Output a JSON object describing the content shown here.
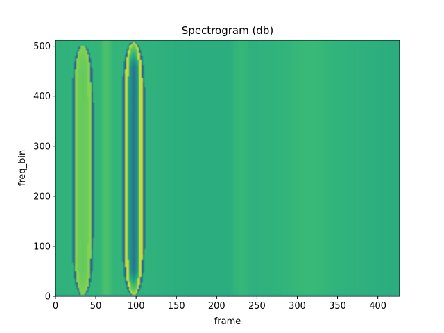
{
  "chart_data": {
    "type": "heatmap",
    "title": "Spectrogram (db)",
    "xlabel": "frame",
    "ylabel": "freq_bin",
    "xlim": [
      0,
      427
    ],
    "ylim": [
      0,
      512
    ],
    "xticks": [
      0,
      50,
      100,
      150,
      200,
      250,
      300,
      350,
      400
    ],
    "yticks": [
      0,
      100,
      200,
      300,
      400,
      500
    ],
    "xtick_labels": [
      "0",
      "50",
      "100",
      "150",
      "200",
      "250",
      "300",
      "350",
      "400"
    ],
    "ytick_labels": [
      "0",
      "100",
      "200",
      "300",
      "400",
      "500"
    ],
    "colormap": "viridis",
    "grid": false,
    "background_level": 0.72,
    "bands": [
      {
        "x_center": 34,
        "x_halfwidth": 12,
        "y_top": 502,
        "y_bottom": 2,
        "outer_level": 0.9,
        "inner_level": 0.86,
        "edge_level": 0.35
      },
      {
        "x_center": 97,
        "x_halfwidth": 13,
        "y_top": 508,
        "y_bottom": 2,
        "outer_level": 0.95,
        "inner_level": 0.42,
        "edge_level": 0.35
      }
    ],
    "faint_bands": [
      {
        "x_center": 63,
        "x_halfwidth": 8,
        "level": 0.78
      },
      {
        "x_center": 230,
        "x_halfwidth": 12,
        "level": 0.76
      },
      {
        "x_center": 315,
        "x_halfwidth": 30,
        "level": 0.74
      }
    ]
  },
  "colors": {
    "axes_edge": "#000000",
    "background": "#ffffff"
  }
}
